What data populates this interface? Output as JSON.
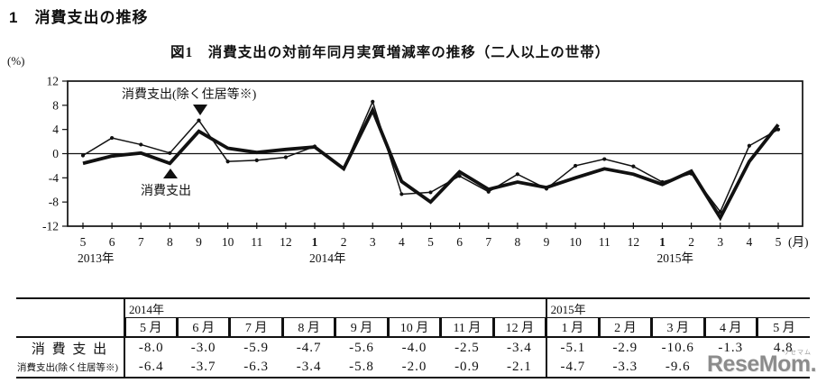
{
  "page": {
    "heading": "1　消費支出の推移",
    "figure_title": "図1　消費支出の対前年同月実質増減率の推移（二人以上の世帯）",
    "y_axis_unit": "(%)",
    "watermark": "ReseMom.",
    "watermark_ruby": "リセマム"
  },
  "chart_data": {
    "type": "line",
    "title": "図1　消費支出の対前年同月実質増減率の推移（二人以上の世帯）",
    "ylabel": "(%)",
    "ylim": [
      -12,
      12
    ],
    "yticks": [
      12,
      8,
      4,
      0,
      -4,
      -8,
      -12
    ],
    "x_unit_suffix": "(月)",
    "grid": false,
    "zero_line": true,
    "categories": [
      "5",
      "6",
      "7",
      "8",
      "9",
      "10",
      "11",
      "12",
      "1",
      "2",
      "3",
      "4",
      "5",
      "6",
      "7",
      "8",
      "9",
      "10",
      "11",
      "12",
      "1",
      "2",
      "3",
      "4",
      "5"
    ],
    "year_labels": [
      {
        "index": 0,
        "label": "2013年"
      },
      {
        "index": 8,
        "label": "2014年"
      },
      {
        "index": 20,
        "label": "2015年"
      }
    ],
    "series": [
      {
        "name": "消費支出",
        "style": "thick",
        "values": [
          -1.6,
          -0.4,
          0.1,
          -1.6,
          3.7,
          0.9,
          0.2,
          0.7,
          1.1,
          -2.5,
          7.2,
          -4.6,
          -8.0,
          -3.0,
          -5.9,
          -4.7,
          -5.6,
          -4.0,
          -2.5,
          -3.4,
          -5.1,
          -2.9,
          -10.6,
          -1.3,
          4.8
        ]
      },
      {
        "name": "消費支出(除く住居等※)",
        "style": "thin-marker",
        "values": [
          -0.3,
          2.6,
          1.5,
          0.1,
          5.5,
          -1.3,
          -1.1,
          -0.6,
          1.2,
          -2.4,
          8.6,
          -6.7,
          -6.4,
          -3.7,
          -6.3,
          -3.4,
          -5.8,
          -2.0,
          -0.9,
          -2.1,
          -4.7,
          -3.3,
          -9.6,
          1.3,
          4.0
        ]
      }
    ],
    "annotations": [
      {
        "text": "消費支出(除く住居等※)",
        "marker": "down-triangle"
      },
      {
        "text": "消費支出",
        "marker": "up-triangle"
      }
    ]
  },
  "table": {
    "year_groups": [
      {
        "label": "2014年",
        "colspan": 8
      },
      {
        "label": "2015年",
        "colspan": 5
      }
    ],
    "columns": [
      "5 月",
      "6 月",
      "7 月",
      "8 月",
      "9 月",
      "10 月",
      "11 月",
      "12 月",
      "1 月",
      "2 月",
      "3 月",
      "4 月",
      "5 月"
    ],
    "rows": [
      {
        "label": "消 費 支 出",
        "values": [
          "-8.0",
          "-3.0",
          "-5.9",
          "-4.7",
          "-5.6",
          "-4.0",
          "-2.5",
          "-3.4",
          "-5.1",
          "-2.9",
          "-10.6",
          "-1.3",
          "4.8"
        ]
      },
      {
        "label": "消費支出(除く住居等※)",
        "values": [
          "-6.4",
          "-3.7",
          "-6.3",
          "-3.4",
          "-5.8",
          "-2.0",
          "-0.9",
          "-2.1",
          "-4.7",
          "-3.3",
          "-9.6",
          "",
          ""
        ]
      }
    ]
  }
}
